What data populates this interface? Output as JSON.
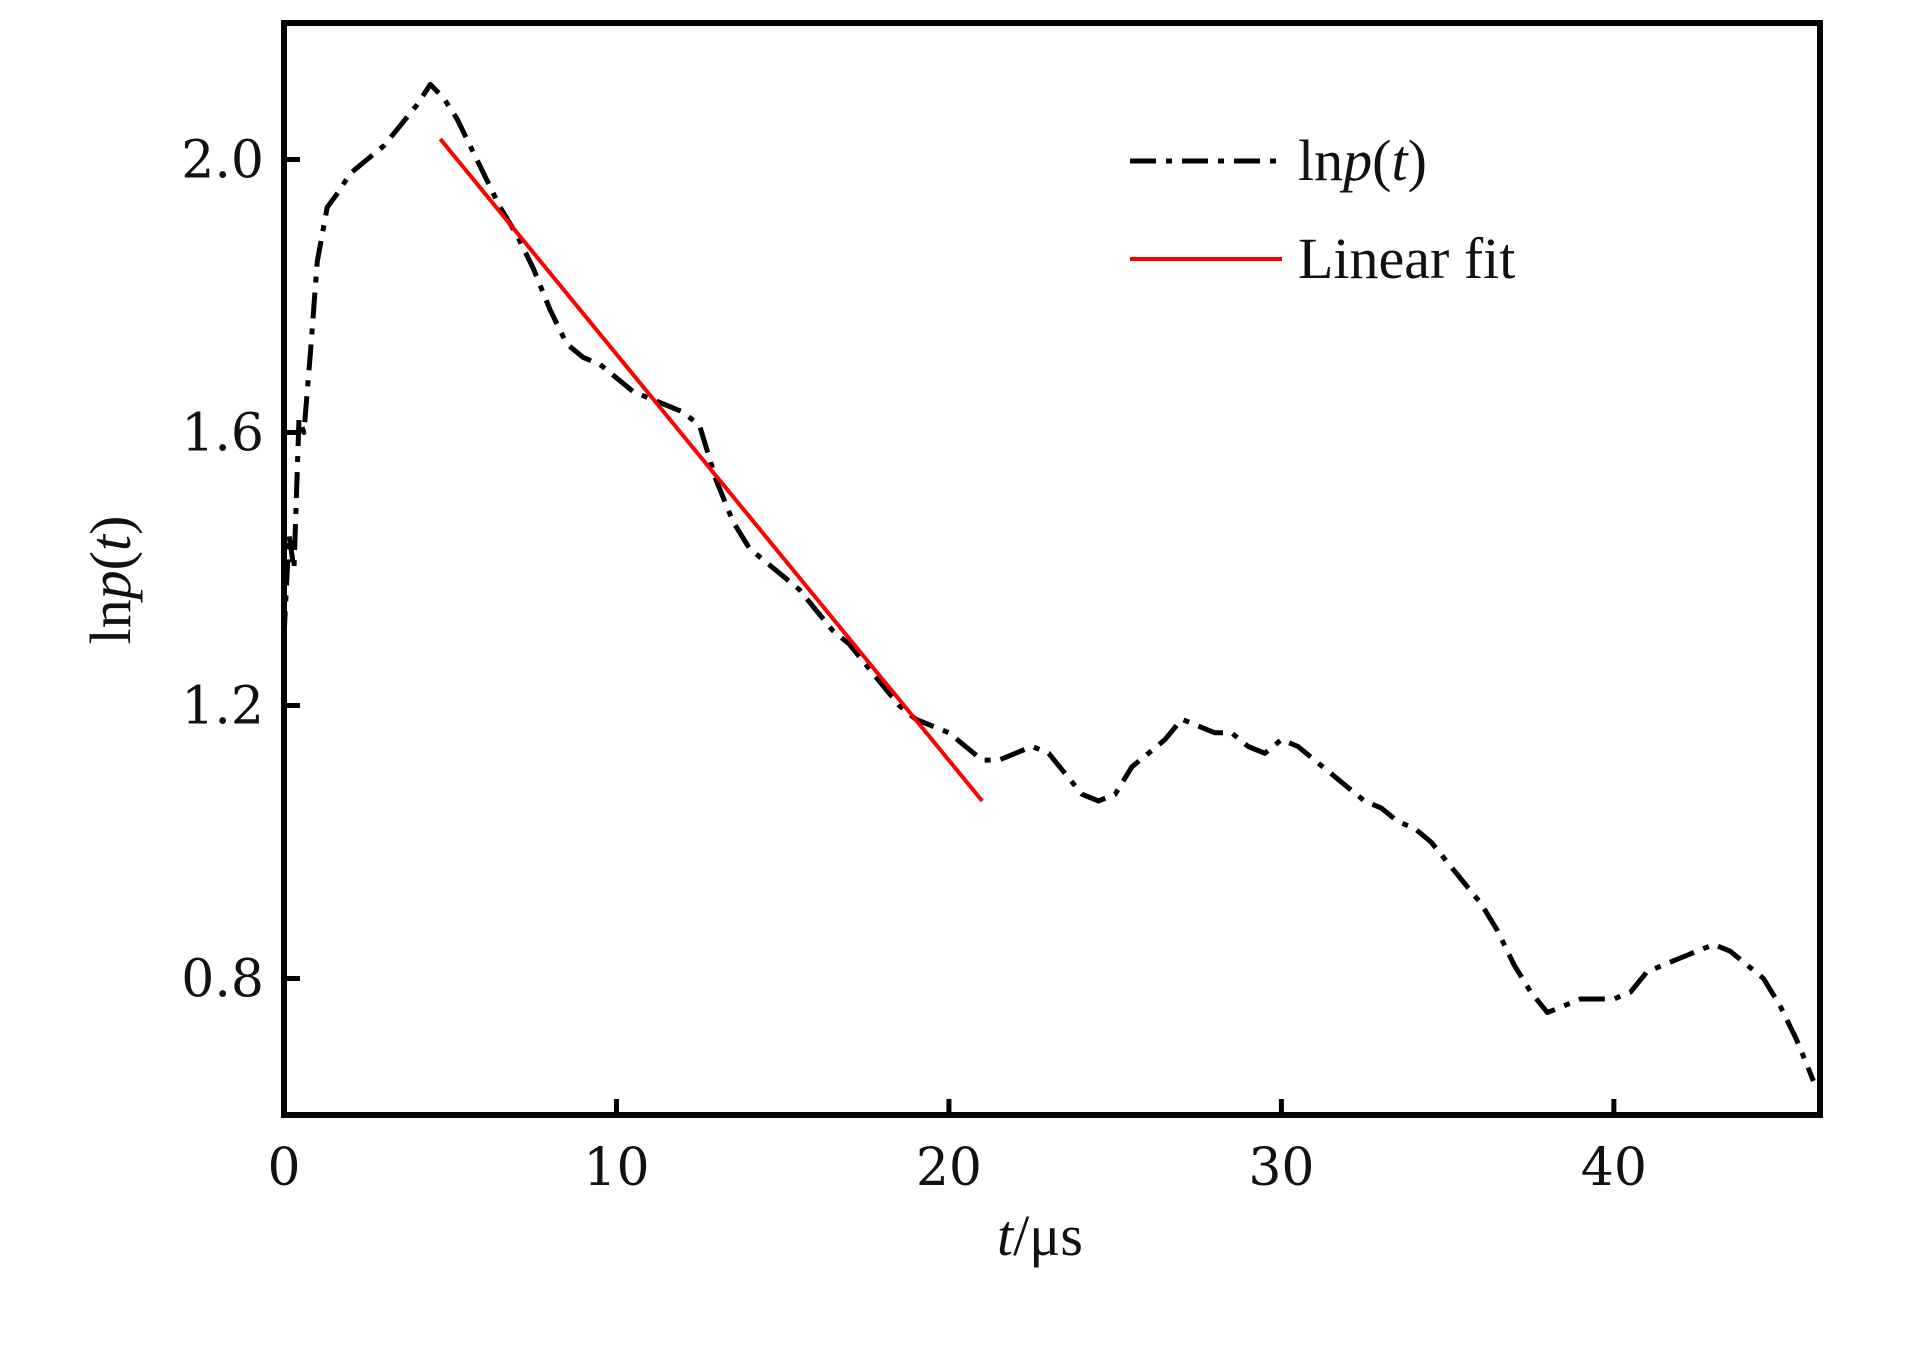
{
  "chart_data": {
    "type": "line",
    "xlabel_parts": {
      "italic": "t",
      "rest": "/μs"
    },
    "ylabel_parts": {
      "pre": "ln",
      "italic_p": "p",
      "open": "(",
      "italic_t": "t",
      "close": ")"
    },
    "xlim": [
      0,
      46.2
    ],
    "ylim": [
      0.6,
      2.2
    ],
    "xticks": [
      0,
      10,
      20,
      30,
      40
    ],
    "xtick_labels": [
      "0",
      "10",
      "20",
      "30",
      "40"
    ],
    "yticks": [
      0.8,
      1.2,
      1.6,
      2.0
    ],
    "ytick_labels": [
      "0.8",
      "1.2",
      "1.6",
      "2.0"
    ],
    "grid": false,
    "legend_position": "top-right",
    "series": [
      {
        "name": "lnp(t)",
        "legend_parts": {
          "pre": "ln",
          "italic_p": "p",
          "open": "(",
          "italic_t": "t",
          "close": ")"
        },
        "style": "dash-dot",
        "color": "#000000",
        "x": [
          0,
          0.15,
          0.3,
          0.45,
          0.6,
          0.8,
          1.0,
          1.3,
          1.6,
          2.0,
          2.5,
          3.0,
          3.5,
          4.0,
          4.4,
          4.8,
          5.2,
          5.6,
          6.0,
          6.5,
          7.0,
          7.5,
          8.0,
          8.5,
          9.0,
          9.5,
          10.0,
          10.5,
          11.0,
          11.5,
          12.0,
          12.5,
          13.0,
          13.5,
          14.0,
          14.5,
          15.0,
          15.5,
          16.0,
          16.5,
          17.0,
          17.5,
          18.0,
          18.5,
          19.0,
          19.5,
          20.0,
          20.5,
          21.0,
          21.5,
          22.0,
          22.5,
          23.0,
          23.5,
          24.0,
          24.5,
          25.0,
          25.5,
          26.0,
          26.5,
          27.0,
          27.5,
          28.0,
          28.5,
          29.0,
          29.5,
          30.0,
          30.5,
          31.0,
          31.5,
          32.0,
          32.5,
          33.0,
          33.5,
          34.0,
          34.5,
          35.0,
          35.5,
          36.0,
          36.5,
          37.0,
          37.5,
          38.0,
          38.5,
          39.0,
          39.5,
          40.0,
          40.5,
          41.0,
          41.5,
          42.0,
          42.5,
          43.0,
          43.5,
          44.0,
          44.5,
          45.0,
          45.5,
          46.0
        ],
        "y": [
          1.3,
          1.45,
          1.4,
          1.62,
          1.6,
          1.72,
          1.85,
          1.93,
          1.95,
          1.98,
          2.0,
          2.02,
          2.05,
          2.08,
          2.11,
          2.09,
          2.06,
          2.02,
          1.98,
          1.93,
          1.89,
          1.84,
          1.78,
          1.73,
          1.71,
          1.7,
          1.68,
          1.66,
          1.65,
          1.64,
          1.63,
          1.61,
          1.53,
          1.47,
          1.43,
          1.41,
          1.39,
          1.37,
          1.34,
          1.31,
          1.29,
          1.26,
          1.23,
          1.2,
          1.18,
          1.17,
          1.16,
          1.14,
          1.12,
          1.12,
          1.13,
          1.14,
          1.13,
          1.1,
          1.07,
          1.06,
          1.07,
          1.11,
          1.13,
          1.15,
          1.18,
          1.17,
          1.16,
          1.16,
          1.14,
          1.13,
          1.15,
          1.14,
          1.12,
          1.1,
          1.08,
          1.06,
          1.05,
          1.03,
          1.02,
          1.0,
          0.97,
          0.94,
          0.91,
          0.87,
          0.82,
          0.78,
          0.75,
          0.76,
          0.77,
          0.77,
          0.77,
          0.78,
          0.81,
          0.82,
          0.83,
          0.84,
          0.85,
          0.84,
          0.82,
          0.8,
          0.76,
          0.71,
          0.65
        ]
      },
      {
        "name": "Linear fit",
        "style": "solid",
        "color": "#ff0000",
        "x": [
          4.7,
          21.0
        ],
        "y": [
          2.03,
          1.06
        ]
      }
    ]
  }
}
